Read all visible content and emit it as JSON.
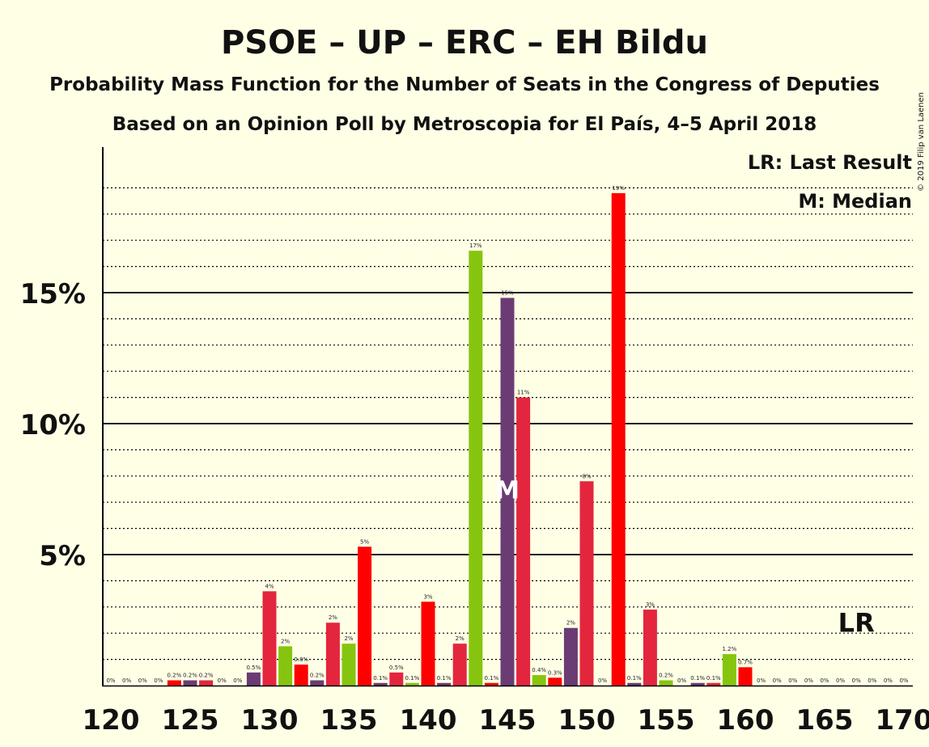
{
  "chart_data": {
    "type": "bar",
    "title": "PSOE – UP – ERC – EH Bildu",
    "subtitle": "Probability Mass Function for the Number of Seats in the Congress of Deputies",
    "subtitle2": "Based on an Opinion Poll by Metroscopia for El País, 4–5 April 2018",
    "copyright": "© 2019 Filip van Laenen",
    "legend": {
      "lr": "LR: Last Result",
      "m": "M: Median"
    },
    "xlabel": "",
    "ylabel": "",
    "x_ticks": [
      "120",
      "125",
      "130",
      "135",
      "140",
      "145",
      "150",
      "155",
      "160",
      "165",
      "170"
    ],
    "y_ticks": [
      {
        "value": 5,
        "label": "5%"
      },
      {
        "value": 10,
        "label": "10%"
      },
      {
        "value": 15,
        "label": "15%"
      }
    ],
    "ylim": [
      0,
      20.5
    ],
    "xlim": [
      120,
      170
    ],
    "grid": "dotted every 1%, solid every 5%",
    "median_seat": 145,
    "median_label": "M",
    "last_result_seat": 167,
    "last_result_label": "LR",
    "colors": {
      "red": "#e3263d",
      "bright_red": "#ff0000",
      "purple": "#6b3c74",
      "green": "#86c50f",
      "background": "#ffffe6"
    },
    "bars": [
      {
        "seat": 120,
        "value": 0.0,
        "label": "0%",
        "color": "red"
      },
      {
        "seat": 121,
        "value": 0.0,
        "label": "0%",
        "color": "red"
      },
      {
        "seat": 122,
        "value": 0.0,
        "label": "0%",
        "color": "red"
      },
      {
        "seat": 123,
        "value": 0.0,
        "label": "0%",
        "color": "red"
      },
      {
        "seat": 124,
        "value": 0.2,
        "label": "0.2%",
        "color": "bright_red"
      },
      {
        "seat": 125,
        "value": 0.2,
        "label": "0.2%",
        "color": "purple"
      },
      {
        "seat": 126,
        "value": 0.2,
        "label": "0.2%",
        "color": "red"
      },
      {
        "seat": 127,
        "value": 0.0,
        "label": "0%",
        "color": "red"
      },
      {
        "seat": 128,
        "value": 0.0,
        "label": "0%",
        "color": "red"
      },
      {
        "seat": 129,
        "value": 0.5,
        "label": "0.5%",
        "color": "purple"
      },
      {
        "seat": 130,
        "value": 3.6,
        "label": "4%",
        "color": "red"
      },
      {
        "seat": 131,
        "value": 1.5,
        "label": "2%",
        "color": "green"
      },
      {
        "seat": 132,
        "value": 0.8,
        "label": "0.8%",
        "color": "bright_red"
      },
      {
        "seat": 133,
        "value": 0.2,
        "label": "0.2%",
        "color": "purple"
      },
      {
        "seat": 134,
        "value": 2.4,
        "label": "2%",
        "color": "red"
      },
      {
        "seat": 135,
        "value": 1.6,
        "label": "2%",
        "color": "green"
      },
      {
        "seat": 136,
        "value": 5.3,
        "label": "5%",
        "color": "bright_red"
      },
      {
        "seat": 137,
        "value": 0.1,
        "label": "0.1%",
        "color": "purple"
      },
      {
        "seat": 138,
        "value": 0.5,
        "label": "0.5%",
        "color": "red"
      },
      {
        "seat": 139,
        "value": 0.1,
        "label": "0.1%",
        "color": "green"
      },
      {
        "seat": 140,
        "value": 3.2,
        "label": "3%",
        "color": "bright_red"
      },
      {
        "seat": 141,
        "value": 0.1,
        "label": "0.1%",
        "color": "purple"
      },
      {
        "seat": 142,
        "value": 1.6,
        "label": "2%",
        "color": "red"
      },
      {
        "seat": 143,
        "value": 16.6,
        "label": "17%",
        "color": "green"
      },
      {
        "seat": 144,
        "value": 0.1,
        "label": "0.1%",
        "color": "bright_red"
      },
      {
        "seat": 145,
        "value": 14.8,
        "label": "15%",
        "color": "purple"
      },
      {
        "seat": 146,
        "value": 11.0,
        "label": "11%",
        "color": "red"
      },
      {
        "seat": 147,
        "value": 0.4,
        "label": "0.4%",
        "color": "green"
      },
      {
        "seat": 148,
        "value": 0.3,
        "label": "0.3%",
        "color": "bright_red"
      },
      {
        "seat": 149,
        "value": 2.2,
        "label": "2%",
        "color": "purple"
      },
      {
        "seat": 150,
        "value": 7.8,
        "label": "8%",
        "color": "red"
      },
      {
        "seat": 151,
        "value": 0.0,
        "label": "0%",
        "color": "green"
      },
      {
        "seat": 152,
        "value": 18.8,
        "label": "19%",
        "color": "bright_red"
      },
      {
        "seat": 153,
        "value": 0.1,
        "label": "0.1%",
        "color": "purple"
      },
      {
        "seat": 154,
        "value": 2.9,
        "label": "3%",
        "color": "red"
      },
      {
        "seat": 155,
        "value": 0.2,
        "label": "0.2%",
        "color": "green"
      },
      {
        "seat": 156,
        "value": 0.0,
        "label": "0%",
        "color": "bright_red"
      },
      {
        "seat": 157,
        "value": 0.1,
        "label": "0.1%",
        "color": "purple"
      },
      {
        "seat": 158,
        "value": 0.1,
        "label": "0.1%",
        "color": "red"
      },
      {
        "seat": 159,
        "value": 1.2,
        "label": "1.2%",
        "color": "green"
      },
      {
        "seat": 160,
        "value": 0.7,
        "label": "0.7%",
        "color": "bright_red"
      },
      {
        "seat": 161,
        "value": 0.0,
        "label": "0%",
        "color": "purple"
      },
      {
        "seat": 162,
        "value": 0.0,
        "label": "0%",
        "color": "red"
      },
      {
        "seat": 163,
        "value": 0.0,
        "label": "0%",
        "color": "green"
      },
      {
        "seat": 164,
        "value": 0.0,
        "label": "0%",
        "color": "bright_red"
      },
      {
        "seat": 165,
        "value": 0.0,
        "label": "0%",
        "color": "purple"
      },
      {
        "seat": 166,
        "value": 0.0,
        "label": "0%",
        "color": "red"
      },
      {
        "seat": 167,
        "value": 0.0,
        "label": "0%",
        "color": "green"
      },
      {
        "seat": 168,
        "value": 0.0,
        "label": "0%",
        "color": "bright_red"
      },
      {
        "seat": 169,
        "value": 0.0,
        "label": "0%",
        "color": "purple"
      },
      {
        "seat": 170,
        "value": 0.0,
        "label": "0%",
        "color": "red"
      }
    ]
  }
}
